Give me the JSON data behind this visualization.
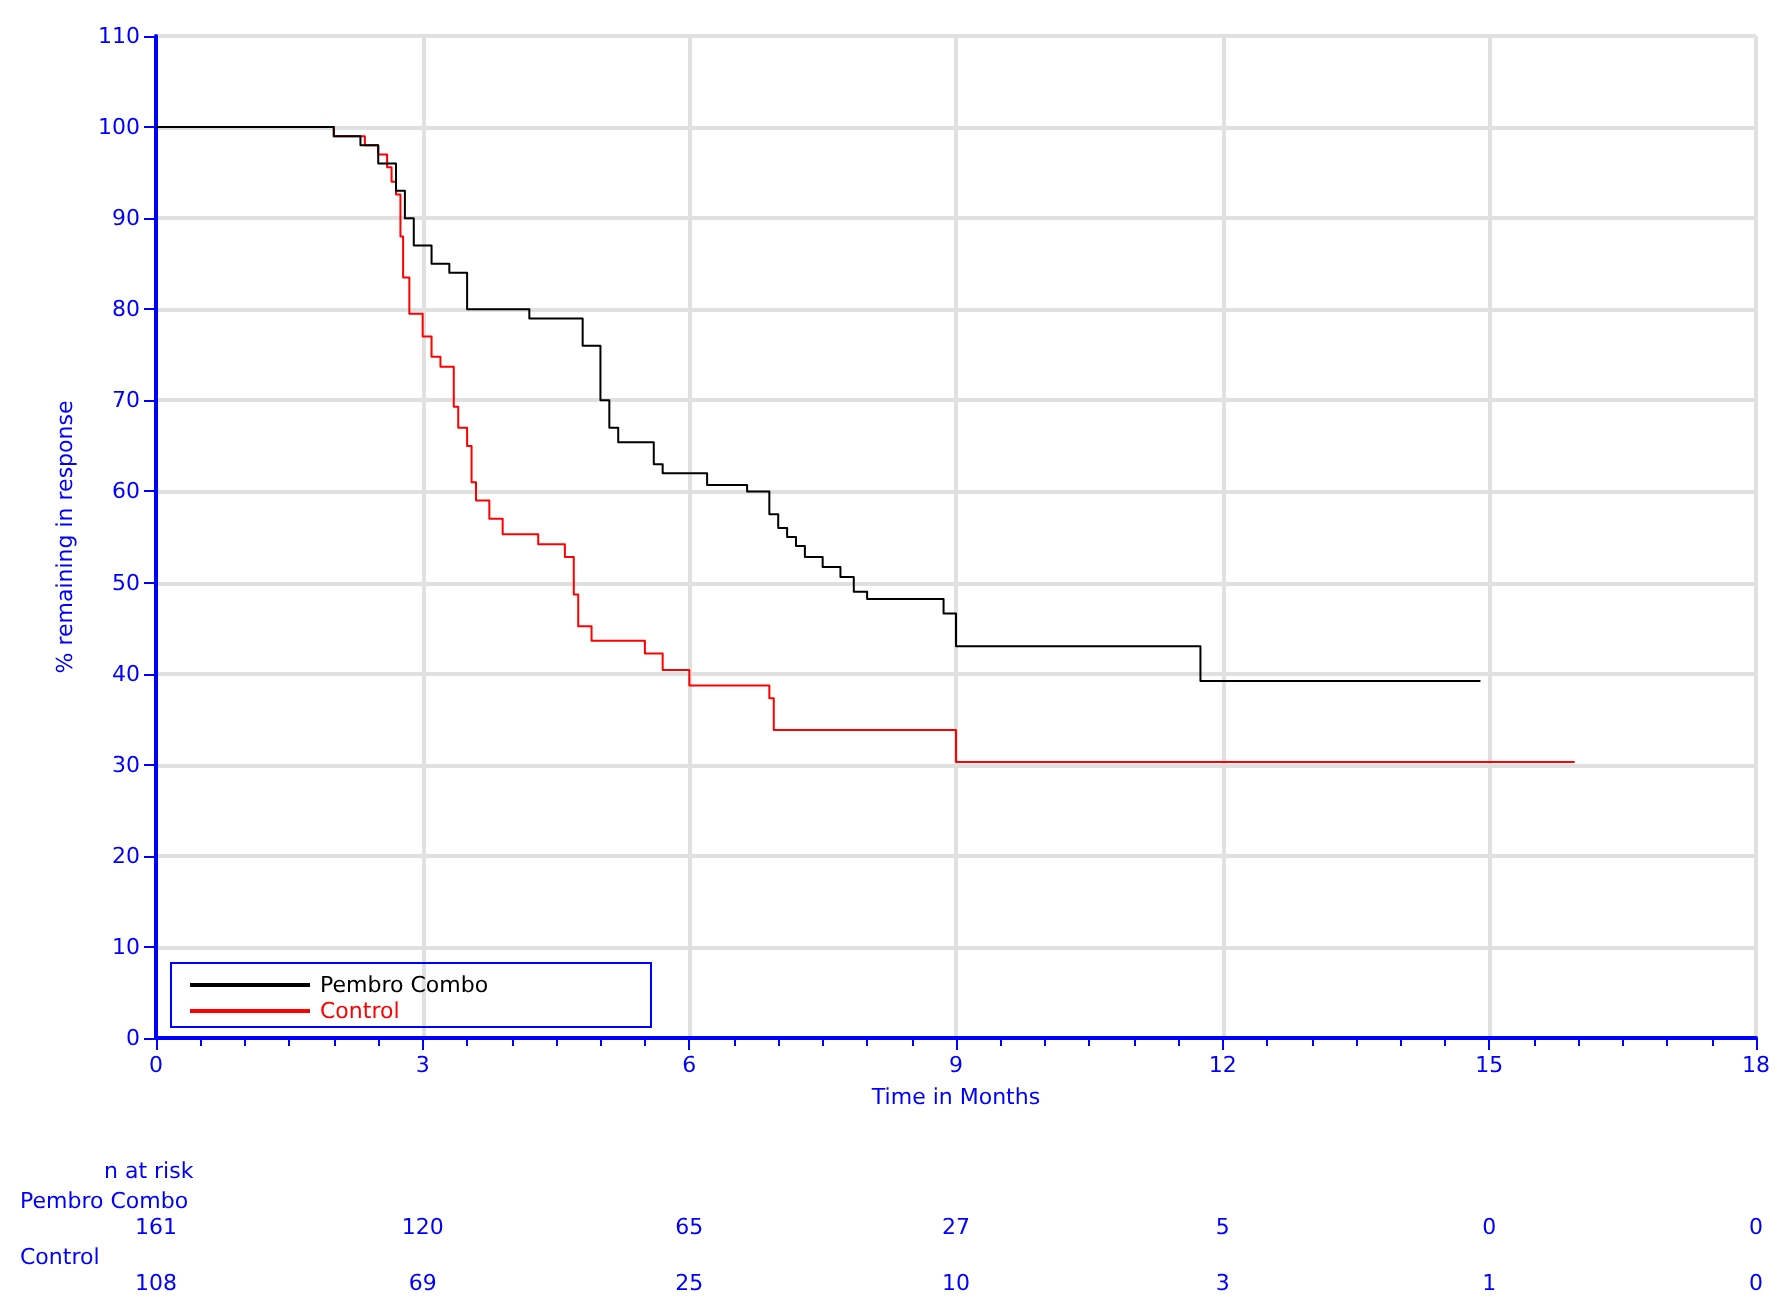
{
  "chart_data": {
    "type": "step",
    "xlabel": "Time in Months",
    "ylabel": "% remaining in response",
    "xlim": [
      0,
      18
    ],
    "xticks": [
      0,
      3,
      6,
      9,
      12,
      15,
      18
    ],
    "ylim": [
      0,
      110
    ],
    "yticks": [
      0,
      10,
      20,
      30,
      40,
      50,
      60,
      70,
      80,
      90,
      100,
      110
    ],
    "grid": true,
    "legend": "bottom left",
    "marker": "none",
    "line_style": "solid",
    "series": [
      {
        "name": "Pembro Combo",
        "color": "#000000",
        "x": [
          0,
          2.0,
          2.3,
          2.5,
          2.7,
          2.8,
          2.9,
          3.1,
          3.3,
          3.5,
          4.2,
          4.8,
          5.0,
          5.1,
          5.2,
          5.6,
          5.7,
          6.2,
          6.65,
          6.9,
          7.0,
          7.1,
          7.2,
          7.3,
          7.5,
          7.7,
          7.85,
          8.0,
          8.86,
          9.0,
          11.75,
          14.9
        ],
        "values": [
          100,
          99,
          98,
          96,
          93,
          90,
          87,
          85,
          84,
          80,
          79,
          76,
          70,
          67,
          65.4,
          63,
          62,
          60.7,
          60,
          57.5,
          56,
          55,
          54,
          52.8,
          51.7,
          50.6,
          49,
          48.2,
          46.6,
          43,
          39.2,
          39.2
        ]
      },
      {
        "name": "Control",
        "color": "#ff0000",
        "x": [
          0,
          2.0,
          2.35,
          2.5,
          2.6,
          2.65,
          2.7,
          2.75,
          2.78,
          2.85,
          3.0,
          3.1,
          3.2,
          3.35,
          3.4,
          3.5,
          3.55,
          3.6,
          3.75,
          3.9,
          4.3,
          4.6,
          4.7,
          4.75,
          4.9,
          5.5,
          5.7,
          6.0,
          6.9,
          6.95,
          9.0,
          15.96
        ],
        "values": [
          100,
          99,
          98,
          97,
          95.6,
          94,
          92.6,
          88,
          83.5,
          79.5,
          77,
          74.8,
          73.7,
          69.3,
          67,
          65,
          61,
          59,
          57,
          55.3,
          54.2,
          52.8,
          48.7,
          45.2,
          43.6,
          42.2,
          40.4,
          38.7,
          37.3,
          33.8,
          30.3,
          30.3
        ]
      }
    ],
    "annotations": [
      "n at risk",
      "Pembro Combo",
      "161",
      "120",
      "65",
      "27",
      "5",
      "0",
      "0",
      "Control",
      "108",
      "69",
      "25",
      "10",
      "3",
      "1",
      "0"
    ]
  }
}
